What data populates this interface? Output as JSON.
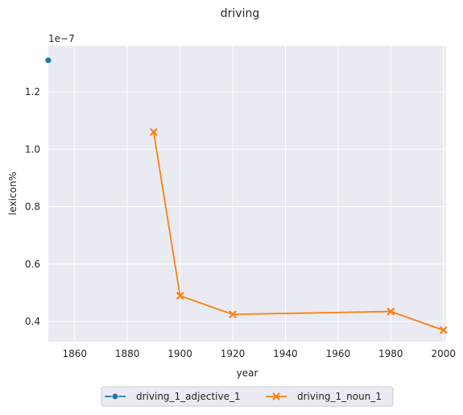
{
  "chart_data": {
    "type": "line",
    "title": "driving",
    "xlabel": "year",
    "ylabel": "lexicon%",
    "y_offset_label": "1e−7",
    "xlim": [
      1850,
      2001
    ],
    "ylim": [
      0.33,
      1.36
    ],
    "y_scale_factor": 1e-07,
    "grid": true,
    "background_color": "#eaeaf2",
    "legend_placement": "bottom-center",
    "x_ticks": [
      1860,
      1880,
      1900,
      1920,
      1940,
      1960,
      1980,
      2000
    ],
    "x_tick_labels": [
      "1860",
      "1880",
      "1900",
      "1920",
      "1940",
      "1960",
      "1980",
      "2000"
    ],
    "y_ticks": [
      0.4,
      0.6,
      0.8,
      1.0,
      1.2
    ],
    "y_tick_labels": [
      "0.4",
      "0.6",
      "0.8",
      "1.0",
      "1.2"
    ],
    "series": [
      {
        "name": "driving_1_adjective_1",
        "color": "#1f77b4",
        "marker": "circle",
        "x": [
          1850
        ],
        "y": [
          1.31
        ]
      },
      {
        "name": "driving_1_noun_1",
        "color": "#ff7f0e",
        "marker": "x",
        "x": [
          1890,
          1900,
          1920,
          1980,
          2000
        ],
        "y": [
          1.06,
          0.49,
          0.425,
          0.435,
          0.37
        ]
      }
    ]
  }
}
